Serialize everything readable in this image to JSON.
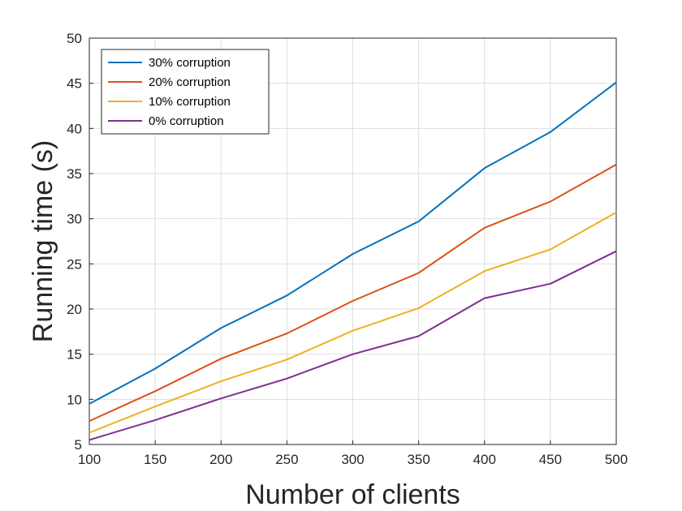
{
  "chart_data": {
    "type": "line",
    "title": "",
    "xlabel": "Number of clients",
    "ylabel": "Running time (s)",
    "x": [
      100,
      150,
      200,
      250,
      300,
      350,
      400,
      450,
      500
    ],
    "xlim": [
      100,
      500
    ],
    "ylim": [
      5,
      50
    ],
    "xticks": [
      "100",
      "150",
      "200",
      "250",
      "300",
      "350",
      "400",
      "450",
      "500"
    ],
    "yticks": [
      "5",
      "10",
      "15",
      "20",
      "25",
      "30",
      "35",
      "40",
      "45",
      "50"
    ],
    "grid": true,
    "legend_position": "top-left",
    "series": [
      {
        "name": "30% corruption",
        "color": "#0072BD",
        "values": [
          9.5,
          13.4,
          17.9,
          21.5,
          26.1,
          29.7,
          35.6,
          39.6,
          45.1
        ]
      },
      {
        "name": "20% corruption",
        "color": "#D95319",
        "values": [
          7.6,
          10.9,
          14.5,
          17.3,
          20.9,
          24.0,
          29.0,
          31.9,
          36.0
        ]
      },
      {
        "name": "10% corruption",
        "color": "#EDB120",
        "values": [
          6.3,
          9.2,
          12.0,
          14.4,
          17.6,
          20.1,
          24.2,
          26.6,
          30.7
        ]
      },
      {
        "name": "0% corruption",
        "color": "#7E2F8E",
        "values": [
          5.5,
          7.7,
          10.1,
          12.3,
          15.0,
          17.0,
          21.2,
          22.8,
          26.4
        ]
      }
    ]
  }
}
